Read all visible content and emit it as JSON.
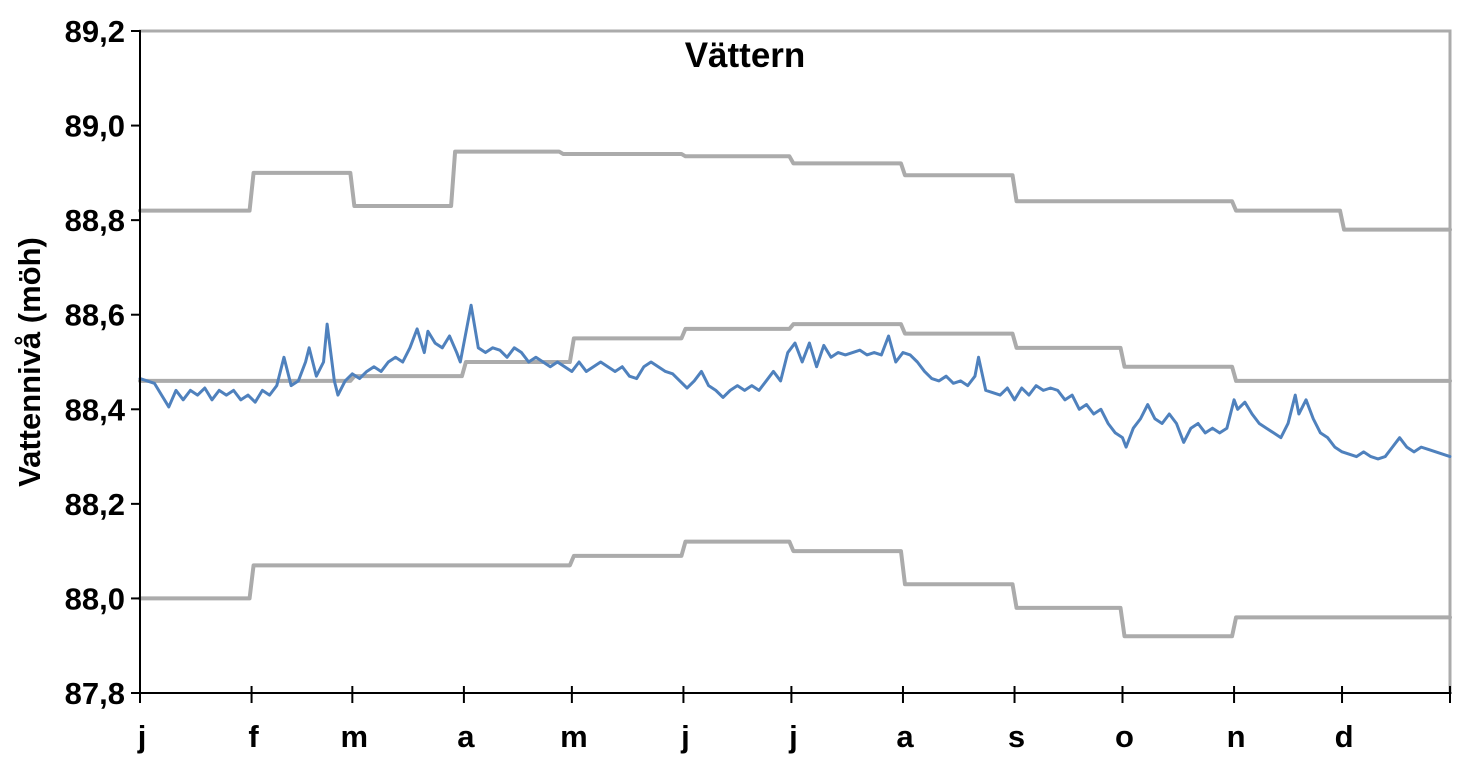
{
  "title": "Vättern",
  "y_axis_title": "Vattennivå (möh)",
  "colors": {
    "series_blue": "#4F81BD",
    "series_gray": "#ABABAB",
    "axis_black": "#000000",
    "background": "#FFFFFF"
  },
  "chart_data": {
    "type": "line",
    "title": "Vättern",
    "xlabel": "",
    "ylabel": "Vattennivå (möh)",
    "x_unit": "day_of_year",
    "xlim": [
      1,
      365
    ],
    "ylim": [
      87.8,
      89.2
    ],
    "grid": false,
    "legend_position": "none",
    "y_tick_values": [
      89.2,
      89.0,
      88.8,
      88.6,
      88.4,
      88.2,
      88.0,
      87.8
    ],
    "y_tick_labels": [
      "89,2",
      "89,0",
      "88,8",
      "88,6",
      "88,4",
      "88,2",
      "88,0",
      "87,8"
    ],
    "x_tick_labels": [
      "j",
      "f",
      "m",
      "a",
      "m",
      "j",
      "j",
      "a",
      "s",
      "o",
      "n",
      "d"
    ],
    "x_tick_days": [
      1,
      32,
      60,
      91,
      121,
      152,
      182,
      213,
      244,
      274,
      305,
      335
    ],
    "series": [
      {
        "name": "upper-bound-line",
        "style": "step",
        "color": "#ABABAB",
        "stroke_width": 4,
        "segments": [
          [
            1,
            31,
            88.82
          ],
          [
            32,
            59,
            88.9
          ],
          [
            60,
            87,
            88.83
          ],
          [
            88,
            117,
            88.945
          ],
          [
            118,
            151,
            88.94
          ],
          [
            152,
            181,
            88.935
          ],
          [
            182,
            212,
            88.92
          ],
          [
            213,
            243,
            88.895
          ],
          [
            244,
            304,
            88.84
          ],
          [
            305,
            334,
            88.82
          ],
          [
            335,
            365,
            88.78
          ]
        ]
      },
      {
        "name": "middle-guide-line",
        "style": "step",
        "color": "#ABABAB",
        "stroke_width": 4,
        "segments": [
          [
            1,
            59,
            88.46
          ],
          [
            60,
            90,
            88.47
          ],
          [
            91,
            120,
            88.5
          ],
          [
            121,
            151,
            88.55
          ],
          [
            152,
            181,
            88.57
          ],
          [
            182,
            212,
            88.58
          ],
          [
            213,
            243,
            88.56
          ],
          [
            244,
            273,
            88.53
          ],
          [
            274,
            304,
            88.49
          ],
          [
            305,
            365,
            88.46
          ]
        ]
      },
      {
        "name": "lower-bound-line",
        "style": "step",
        "color": "#ABABAB",
        "stroke_width": 4,
        "segments": [
          [
            1,
            31,
            88.0
          ],
          [
            32,
            120,
            88.07
          ],
          [
            121,
            151,
            88.09
          ],
          [
            152,
            181,
            88.12
          ],
          [
            182,
            212,
            88.1
          ],
          [
            213,
            243,
            88.03
          ],
          [
            244,
            273,
            87.98
          ],
          [
            274,
            304,
            87.92
          ],
          [
            305,
            365,
            87.96
          ]
        ]
      },
      {
        "name": "water-level-line",
        "style": "daily",
        "color": "#4F81BD",
        "stroke_width": 3,
        "points": [
          [
            1,
            88.465
          ],
          [
            3,
            88.46
          ],
          [
            5,
            88.455
          ],
          [
            7,
            88.43
          ],
          [
            9,
            88.405
          ],
          [
            11,
            88.44
          ],
          [
            13,
            88.42
          ],
          [
            15,
            88.44
          ],
          [
            17,
            88.43
          ],
          [
            19,
            88.445
          ],
          [
            21,
            88.42
          ],
          [
            23,
            88.44
          ],
          [
            25,
            88.43
          ],
          [
            27,
            88.44
          ],
          [
            29,
            88.42
          ],
          [
            31,
            88.43
          ],
          [
            33,
            88.415
          ],
          [
            35,
            88.44
          ],
          [
            37,
            88.43
          ],
          [
            39,
            88.45
          ],
          [
            41,
            88.51
          ],
          [
            43,
            88.45
          ],
          [
            45,
            88.46
          ],
          [
            47,
            88.5
          ],
          [
            48,
            88.53
          ],
          [
            50,
            88.47
          ],
          [
            52,
            88.5
          ],
          [
            53,
            88.58
          ],
          [
            55,
            88.46
          ],
          [
            56,
            88.43
          ],
          [
            58,
            88.46
          ],
          [
            60,
            88.475
          ],
          [
            62,
            88.465
          ],
          [
            64,
            88.48
          ],
          [
            66,
            88.49
          ],
          [
            68,
            88.48
          ],
          [
            70,
            88.5
          ],
          [
            72,
            88.51
          ],
          [
            74,
            88.5
          ],
          [
            76,
            88.53
          ],
          [
            78,
            88.57
          ],
          [
            80,
            88.52
          ],
          [
            81,
            88.565
          ],
          [
            83,
            88.54
          ],
          [
            85,
            88.53
          ],
          [
            87,
            88.555
          ],
          [
            89,
            88.52
          ],
          [
            90,
            88.5
          ],
          [
            93,
            88.62
          ],
          [
            95,
            88.53
          ],
          [
            97,
            88.52
          ],
          [
            99,
            88.53
          ],
          [
            101,
            88.525
          ],
          [
            103,
            88.51
          ],
          [
            105,
            88.53
          ],
          [
            107,
            88.52
          ],
          [
            109,
            88.5
          ],
          [
            111,
            88.51
          ],
          [
            113,
            88.5
          ],
          [
            115,
            88.49
          ],
          [
            117,
            88.5
          ],
          [
            119,
            88.49
          ],
          [
            121,
            88.48
          ],
          [
            123,
            88.5
          ],
          [
            125,
            88.48
          ],
          [
            127,
            88.49
          ],
          [
            129,
            88.5
          ],
          [
            131,
            88.49
          ],
          [
            133,
            88.48
          ],
          [
            135,
            88.49
          ],
          [
            137,
            88.47
          ],
          [
            139,
            88.465
          ],
          [
            141,
            88.49
          ],
          [
            143,
            88.5
          ],
          [
            145,
            88.49
          ],
          [
            147,
            88.48
          ],
          [
            149,
            88.475
          ],
          [
            151,
            88.46
          ],
          [
            153,
            88.445
          ],
          [
            155,
            88.46
          ],
          [
            157,
            88.48
          ],
          [
            159,
            88.45
          ],
          [
            161,
            88.44
          ],
          [
            163,
            88.425
          ],
          [
            165,
            88.44
          ],
          [
            167,
            88.45
          ],
          [
            169,
            88.44
          ],
          [
            171,
            88.45
          ],
          [
            173,
            88.44
          ],
          [
            175,
            88.46
          ],
          [
            177,
            88.48
          ],
          [
            179,
            88.46
          ],
          [
            181,
            88.52
          ],
          [
            183,
            88.54
          ],
          [
            185,
            88.5
          ],
          [
            187,
            88.54
          ],
          [
            189,
            88.49
          ],
          [
            191,
            88.535
          ],
          [
            193,
            88.51
          ],
          [
            195,
            88.52
          ],
          [
            197,
            88.515
          ],
          [
            199,
            88.52
          ],
          [
            201,
            88.525
          ],
          [
            203,
            88.515
          ],
          [
            205,
            88.52
          ],
          [
            207,
            88.515
          ],
          [
            209,
            88.555
          ],
          [
            211,
            88.5
          ],
          [
            213,
            88.52
          ],
          [
            215,
            88.515
          ],
          [
            217,
            88.5
          ],
          [
            219,
            88.48
          ],
          [
            221,
            88.465
          ],
          [
            223,
            88.46
          ],
          [
            225,
            88.47
          ],
          [
            227,
            88.455
          ],
          [
            229,
            88.46
          ],
          [
            231,
            88.45
          ],
          [
            233,
            88.47
          ],
          [
            234,
            88.51
          ],
          [
            236,
            88.44
          ],
          [
            238,
            88.435
          ],
          [
            240,
            88.43
          ],
          [
            242,
            88.445
          ],
          [
            244,
            88.42
          ],
          [
            246,
            88.445
          ],
          [
            248,
            88.43
          ],
          [
            250,
            88.45
          ],
          [
            252,
            88.44
          ],
          [
            254,
            88.445
          ],
          [
            256,
            88.44
          ],
          [
            258,
            88.42
          ],
          [
            260,
            88.43
          ],
          [
            262,
            88.4
          ],
          [
            264,
            88.41
          ],
          [
            266,
            88.39
          ],
          [
            268,
            88.4
          ],
          [
            270,
            88.37
          ],
          [
            272,
            88.35
          ],
          [
            274,
            88.34
          ],
          [
            275,
            88.32
          ],
          [
            277,
            88.36
          ],
          [
            279,
            88.38
          ],
          [
            281,
            88.41
          ],
          [
            283,
            88.38
          ],
          [
            285,
            88.37
          ],
          [
            287,
            88.39
          ],
          [
            289,
            88.37
          ],
          [
            291,
            88.33
          ],
          [
            293,
            88.36
          ],
          [
            295,
            88.37
          ],
          [
            297,
            88.35
          ],
          [
            299,
            88.36
          ],
          [
            301,
            88.35
          ],
          [
            303,
            88.36
          ],
          [
            305,
            88.42
          ],
          [
            306,
            88.4
          ],
          [
            308,
            88.415
          ],
          [
            310,
            88.39
          ],
          [
            312,
            88.37
          ],
          [
            314,
            88.36
          ],
          [
            316,
            88.35
          ],
          [
            318,
            88.34
          ],
          [
            320,
            88.37
          ],
          [
            322,
            88.43
          ],
          [
            323,
            88.39
          ],
          [
            325,
            88.42
          ],
          [
            327,
            88.38
          ],
          [
            329,
            88.35
          ],
          [
            331,
            88.34
          ],
          [
            333,
            88.32
          ],
          [
            335,
            88.31
          ],
          [
            337,
            88.305
          ],
          [
            339,
            88.3
          ],
          [
            341,
            88.31
          ],
          [
            343,
            88.3
          ],
          [
            345,
            88.295
          ],
          [
            347,
            88.3
          ],
          [
            349,
            88.32
          ],
          [
            351,
            88.34
          ],
          [
            353,
            88.32
          ],
          [
            355,
            88.31
          ],
          [
            357,
            88.32
          ],
          [
            359,
            88.315
          ],
          [
            361,
            88.31
          ],
          [
            363,
            88.305
          ],
          [
            365,
            88.3
          ]
        ]
      }
    ]
  }
}
